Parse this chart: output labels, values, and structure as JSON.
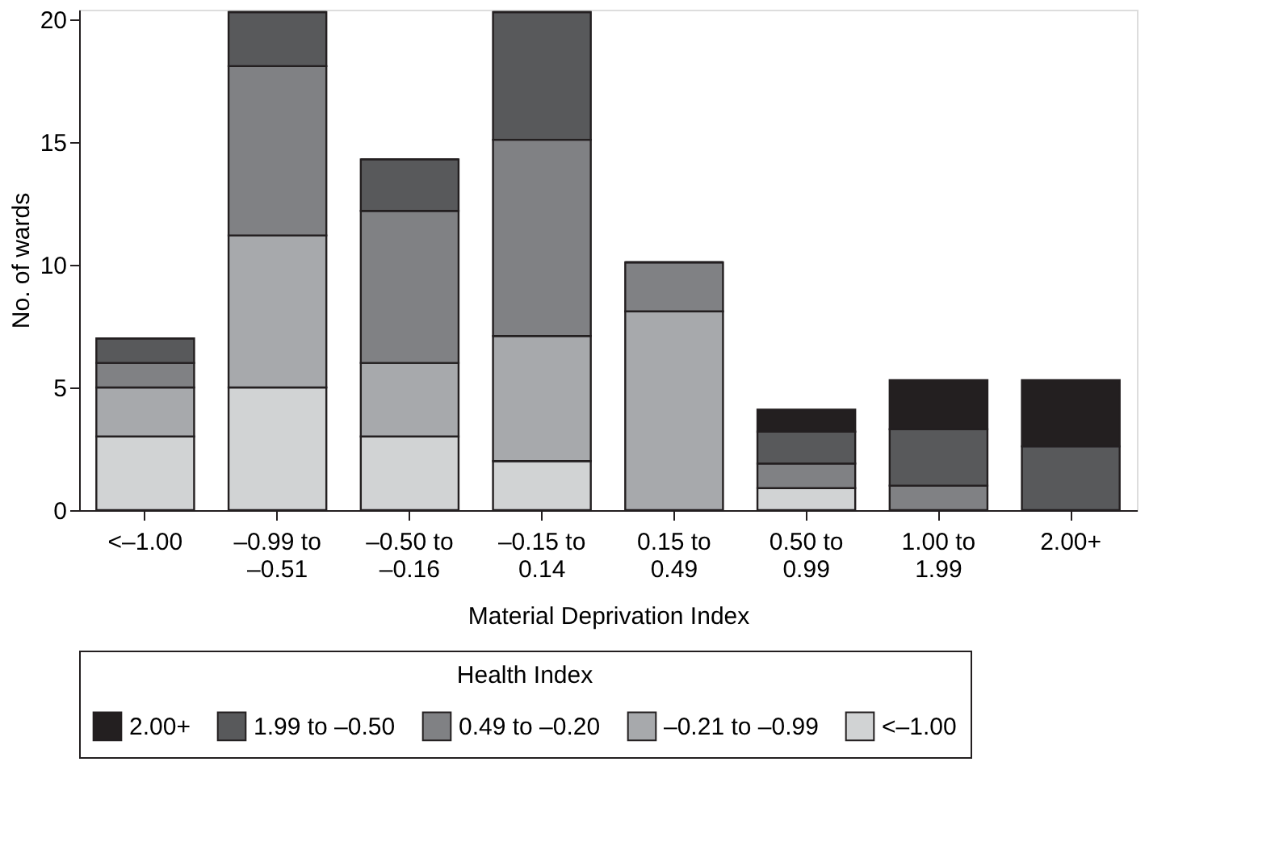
{
  "chart_data": {
    "type": "bar",
    "stacked": true,
    "xlabel": "Material Deprivation Index",
    "ylabel": "No. of wards",
    "legend_title": "Health Index",
    "categories": [
      "<–1.00",
      "–0.99 to –0.51",
      "–0.50 to –0.16",
      "–0.15 to 0.14",
      "0.15 to 0.49",
      "0.50 to 0.99",
      "1.00 to 1.99",
      "2.00+"
    ],
    "series": [
      {
        "name": "<–1.00",
        "color": "#d1d3d4",
        "values": [
          3,
          5,
          3,
          2,
          0,
          0.9,
          0,
          0
        ]
      },
      {
        "name": "–0.21 to –0.99",
        "color": "#a7a9ac",
        "values": [
          2,
          6.2,
          3,
          5.1,
          8.1,
          0,
          0,
          0
        ]
      },
      {
        "name": "0.49 to –0.20",
        "color": "#808184",
        "values": [
          1,
          6.9,
          6.2,
          8,
          2,
          1,
          1,
          0
        ]
      },
      {
        "name": "1.99 to –0.50",
        "color": "#58595b",
        "values": [
          1,
          2.2,
          2.1,
          5.2,
          0,
          1.3,
          2.3,
          2.6
        ]
      },
      {
        "name": "2.00+",
        "color": "#231f20",
        "values": [
          0,
          0,
          0,
          0,
          0,
          0.9,
          2,
          2.7
        ]
      }
    ],
    "ylim": [
      0,
      20.4
    ],
    "yticks": [
      0,
      5,
      10,
      15,
      20
    ],
    "grid": false,
    "legend": "bottom"
  }
}
